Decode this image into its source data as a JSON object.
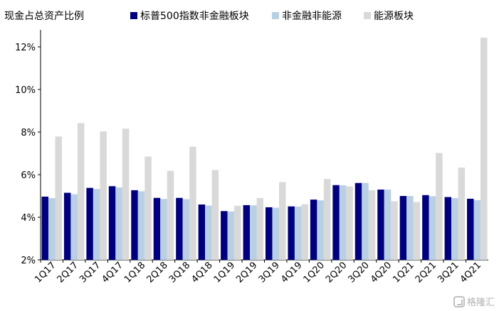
{
  "chart_data": {
    "type": "bar",
    "title": "",
    "ylabel": "现金占总资产比例",
    "xlabel": "",
    "ylim": [
      2,
      12.8
    ],
    "yticks": [
      2,
      4,
      6,
      8,
      10,
      12
    ],
    "ytick_format": "percent",
    "legend_position": "top",
    "categories": [
      "1Q17",
      "2Q17",
      "3Q17",
      "4Q17",
      "1Q18",
      "2Q18",
      "3Q18",
      "4Q18",
      "1Q19",
      "2Q19",
      "3Q19",
      "4Q19",
      "1Q20",
      "2Q20",
      "3Q20",
      "4Q20",
      "1Q21",
      "2Q21",
      "3Q21",
      "4Q21"
    ],
    "series": [
      {
        "name": "标普500指数非金融板块",
        "color": "#00007f",
        "values": [
          4.97,
          5.15,
          5.38,
          5.46,
          5.27,
          4.91,
          4.91,
          4.6,
          4.29,
          4.57,
          4.47,
          4.51,
          4.83,
          5.51,
          5.61,
          5.3,
          5.0,
          5.04,
          4.95,
          4.87
        ]
      },
      {
        "name": "非金融非能源",
        "color": "#b8cfe4",
        "values": [
          4.9,
          5.08,
          5.33,
          5.4,
          5.22,
          4.86,
          4.85,
          4.55,
          4.27,
          4.56,
          4.45,
          4.5,
          4.79,
          5.5,
          5.61,
          5.3,
          5.0,
          4.99,
          4.9,
          4.8
        ]
      },
      {
        "name": "能源板块",
        "color": "#d9d9d9",
        "values": [
          7.79,
          8.42,
          8.03,
          8.16,
          6.85,
          6.18,
          7.31,
          6.22,
          4.54,
          4.9,
          5.65,
          4.61,
          5.8,
          5.45,
          5.27,
          4.75,
          4.72,
          7.02,
          6.33,
          12.43
        ]
      }
    ]
  },
  "watermark": {
    "text": "格隆汇",
    "icon": "gelonghui-logo-icon"
  }
}
